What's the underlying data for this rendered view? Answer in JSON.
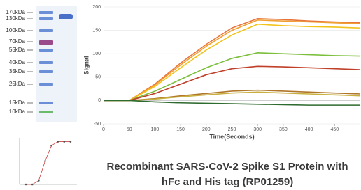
{
  "gel": {
    "ladder_labels": [
      "170kDa",
      "130kDa",
      "100kDa",
      "70kDa",
      "55kDa",
      "40kDa",
      "35kDa",
      "25kDa",
      "15kDa",
      "10kDa"
    ]
  },
  "caption": {
    "line1": "Recombinant SARS-CoV-2 Spike S1 Protein with",
    "line2": "hFc and His tag (RP01259)"
  },
  "chart_data": [
    {
      "type": "line",
      "x_label": "Time(Seconds)",
      "y_label": "Signal",
      "x": [
        0,
        50,
        100,
        150,
        200,
        250,
        300,
        350,
        400,
        450,
        500
      ],
      "xlim": [
        0,
        500
      ],
      "xticks": [
        0,
        50,
        100,
        150,
        200,
        250,
        300,
        350,
        400,
        450
      ],
      "ylim": [
        -50,
        200
      ],
      "yticks": [
        -50,
        0,
        50,
        100,
        150,
        200
      ],
      "series": [
        {
          "color": "#e8743b",
          "values": [
            0,
            0,
            35,
            80,
            120,
            155,
            175,
            173,
            170,
            168,
            166
          ]
        },
        {
          "color": "#f0a030",
          "values": [
            0,
            0,
            33,
            76,
            116,
            150,
            172,
            170,
            168,
            166,
            164
          ]
        },
        {
          "color": "#f2c318",
          "values": [
            0,
            0,
            30,
            70,
            108,
            140,
            163,
            160,
            158,
            157,
            155
          ]
        },
        {
          "color": "#7cbf3c",
          "values": [
            0,
            0,
            20,
            45,
            70,
            90,
            102,
            100,
            98,
            96,
            95
          ]
        },
        {
          "color": "#c0402a",
          "values": [
            0,
            0,
            15,
            35,
            55,
            68,
            73,
            72,
            70,
            68,
            66
          ]
        },
        {
          "color": "#b0772a",
          "values": [
            0,
            0,
            4,
            10,
            15,
            20,
            22,
            20,
            18,
            16,
            14
          ]
        },
        {
          "color": "#c8b040",
          "values": [
            0,
            0,
            3,
            8,
            12,
            16,
            18,
            16,
            14,
            12,
            10
          ]
        },
        {
          "color": "#2e6b2e",
          "values": [
            0,
            0,
            -3,
            -5,
            -6,
            -7,
            -8,
            -9,
            -10,
            -10,
            -10
          ]
        }
      ]
    },
    {
      "type": "scatter",
      "color": "#d04040",
      "x": [
        1,
        2,
        3,
        4,
        5,
        6,
        7,
        8
      ],
      "values": [
        0,
        0,
        0.1,
        0.6,
        1.0,
        1.1,
        1.1,
        1.1
      ],
      "xlim": [
        0,
        9
      ],
      "ylim": [
        0,
        1.2
      ]
    }
  ]
}
